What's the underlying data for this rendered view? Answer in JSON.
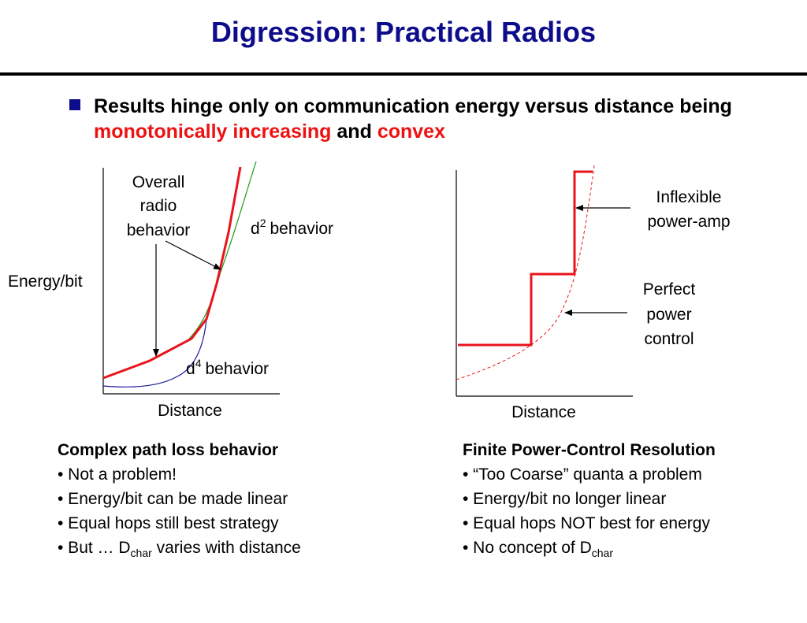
{
  "slide": {
    "title": "Digression: Practical Radios",
    "bullet": {
      "text_before": "Results hinge only on communication energy versus distance being",
      "emph1": "monotonically increasing",
      "conj": "and",
      "emph2": "convex"
    }
  },
  "left_diagram": {
    "y_label": "Energy/bit",
    "x_label": "Distance",
    "overall_label": [
      "Overall",
      "radio",
      "behavior"
    ],
    "d2_label": {
      "base": "d",
      "exp": "2",
      "suffix": "behavior"
    },
    "d4_label": {
      "base": "d",
      "exp": "4",
      "suffix": "behavior"
    }
  },
  "right_diagram": {
    "x_label": "Distance",
    "inflexible_label": [
      "Inflexible",
      "power-amp"
    ],
    "perfect_label": [
      "Perfect",
      "power",
      "control"
    ]
  },
  "left_column": {
    "heading": "Complex path loss behavior",
    "items": [
      "• Not a problem!",
      "• Energy/bit can be made linear",
      "• Equal hops still best strategy"
    ],
    "last_item": {
      "prefix": "• But … D",
      "sub": "char",
      "suffix": " varies with distance"
    }
  },
  "right_column": {
    "heading": "Finite Power-Control Resolution",
    "items": [
      "• “Too Coarse” quanta a problem",
      "• Energy/bit no longer linear",
      "• Equal hops NOT best for energy"
    ],
    "last_item": {
      "prefix": "• No concept of D",
      "sub": "char",
      "suffix": ""
    }
  },
  "colors": {
    "title": "#0d0d8c",
    "rule": "#000000",
    "bullet": "#0d0d8c",
    "accent": "#ee1111",
    "red_curve": "#e8141c",
    "green_curve": "#1a9a1a",
    "blue_curve": "#1a1a9c"
  }
}
